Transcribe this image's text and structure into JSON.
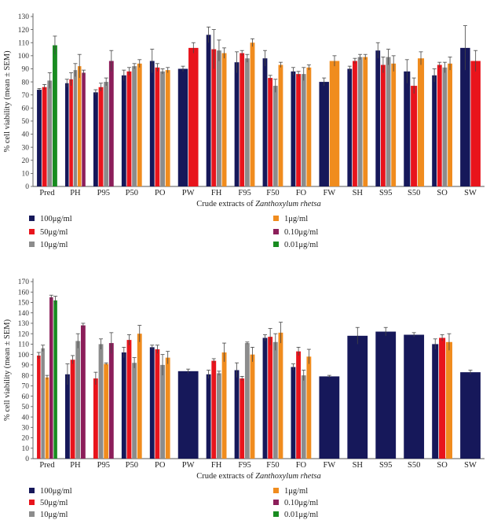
{
  "colors": {
    "100ug": "#16185a",
    "50ug": "#e8141c",
    "10ug": "#8c8c8c",
    "1ug": "#f08c1e",
    "0.10ug": "#8c1e5a",
    "0.01ug": "#188c20"
  },
  "chart_data": [
    {
      "type": "bar",
      "title": "",
      "xlabel_prefix": "Crude extracts of ",
      "xlabel_italic": "Zanthoxylum rhetsa",
      "ylabel": "% cell viability (mean ± SEM)",
      "ylim": [
        0,
        130
      ],
      "ytick_step": 10,
      "categories": [
        "Pred",
        "PH",
        "P95",
        "P50",
        "PO",
        "PW",
        "FH",
        "F95",
        "F50",
        "FO",
        "FW",
        "SH",
        "S95",
        "S50",
        "SO",
        "SW"
      ],
      "series": [
        {
          "name": "100μg/ml",
          "color_key": "100ug",
          "values": [
            74,
            79,
            72,
            85,
            96,
            90,
            116,
            95,
            98,
            88,
            80,
            90,
            104,
            88,
            85,
            106
          ],
          "errors": [
            1,
            3,
            2,
            4,
            9,
            2,
            6,
            8,
            6,
            3,
            3,
            2,
            6,
            9,
            5,
            17
          ]
        },
        {
          "name": "50μg/ml",
          "color_key": "50ug",
          "values": [
            76,
            82,
            76,
            88,
            91,
            106,
            105,
            102,
            83,
            86,
            null,
            96,
            93,
            77,
            93,
            96
          ],
          "errors": [
            2,
            5,
            3,
            3,
            3,
            4,
            15,
            2,
            2,
            2,
            null,
            2,
            6,
            6,
            2,
            8
          ]
        },
        {
          "name": "10μg/ml",
          "color_key": "10ug",
          "values": [
            81,
            89,
            80,
            92,
            88,
            null,
            104,
            98,
            77,
            86,
            null,
            99,
            99,
            null,
            91,
            null
          ],
          "errors": [
            6,
            5,
            3,
            2,
            2,
            null,
            8,
            3,
            5,
            5,
            null,
            2,
            6,
            null,
            4,
            null
          ]
        },
        {
          "name": "1μg/ml",
          "color_key": "1ug",
          "values": [
            null,
            92,
            null,
            94,
            89,
            null,
            102,
            110,
            93,
            91,
            96,
            99,
            94,
            98,
            94,
            null
          ],
          "errors": [
            null,
            9,
            null,
            3,
            2,
            null,
            4,
            3,
            2,
            2,
            4,
            2,
            6,
            5,
            5,
            null
          ]
        },
        {
          "name": "0.10μg/ml",
          "color_key": "0.10ug",
          "values": [
            null,
            87,
            96,
            null,
            null,
            null,
            null,
            null,
            null,
            null,
            null,
            null,
            null,
            null,
            null,
            null
          ],
          "errors": [
            null,
            2,
            8,
            null,
            null,
            null,
            null,
            null,
            null,
            null,
            null,
            null,
            null,
            null,
            null,
            null
          ]
        },
        {
          "name": "0.01μg/ml",
          "color_key": "0.01ug",
          "values": [
            108,
            null,
            null,
            null,
            null,
            null,
            null,
            null,
            null,
            null,
            null,
            null,
            null,
            null,
            null,
            null
          ],
          "errors": [
            7,
            null,
            null,
            null,
            null,
            null,
            null,
            null,
            null,
            null,
            null,
            null,
            null,
            null,
            null,
            null
          ]
        }
      ],
      "legend": [
        "100μg/ml",
        "1μg/ml",
        "50μg/ml",
        "0.10μg/ml",
        "10μg/ml",
        "0.01μg/ml"
      ]
    },
    {
      "type": "bar",
      "title": "",
      "xlabel_prefix": "Crude extracts of ",
      "xlabel_italic": "Zanthoxylum rhetsa",
      "ylabel": "% cell viability (mean ± SEM)",
      "ylim": [
        0,
        170
      ],
      "ytick_step": 10,
      "categories": [
        "Pred",
        "PH",
        "P95",
        "P50",
        "PO",
        "PW",
        "FH",
        "F95",
        "F50",
        "FO",
        "FW",
        "SH",
        "S95",
        "S50",
        "SO",
        "SW"
      ],
      "series": [
        {
          "name": "100μg/ml",
          "color_key": "100ug",
          "values": [
            null,
            81,
            null,
            102,
            107,
            84,
            81,
            85,
            116,
            88,
            79,
            118,
            122,
            119,
            110,
            83
          ],
          "errors": [
            null,
            10,
            null,
            5,
            2,
            2,
            4,
            7,
            3,
            3,
            1,
            8,
            4,
            2,
            5,
            2
          ]
        },
        {
          "name": "50μg/ml",
          "color_key": "50ug",
          "values": [
            99,
            95,
            77,
            114,
            105,
            null,
            94,
            77,
            117,
            103,
            null,
            null,
            null,
            null,
            116,
            null
          ],
          "errors": [
            3,
            4,
            6,
            5,
            4,
            null,
            2,
            2,
            8,
            4,
            null,
            null,
            null,
            null,
            3,
            null
          ]
        },
        {
          "name": "10μg/ml",
          "color_key": "10ug",
          "values": [
            106,
            113,
            110,
            92,
            90,
            null,
            82,
            111,
            112,
            80,
            null,
            null,
            null,
            null,
            null,
            null
          ],
          "errors": [
            3,
            7,
            5,
            5,
            10,
            null,
            2,
            1,
            8,
            5,
            null,
            null,
            null,
            null,
            null,
            null
          ]
        },
        {
          "name": "1μg/ml",
          "color_key": "1ug",
          "values": [
            78,
            null,
            91,
            120,
            97,
            null,
            102,
            100,
            121,
            98,
            null,
            null,
            null,
            null,
            112,
            null
          ],
          "errors": [
            2,
            null,
            1,
            8,
            6,
            null,
            9,
            7,
            10,
            7,
            null,
            null,
            null,
            null,
            8,
            null
          ]
        },
        {
          "name": "0.10μg/ml",
          "color_key": "0.10ug",
          "values": [
            155,
            128,
            111,
            null,
            null,
            null,
            null,
            null,
            null,
            null,
            null,
            null,
            null,
            null,
            null,
            null
          ],
          "errors": [
            2,
            2,
            10,
            null,
            null,
            null,
            null,
            null,
            null,
            null,
            null,
            null,
            null,
            null,
            null,
            null
          ]
        },
        {
          "name": "0.01μg/ml",
          "color_key": "0.01ug",
          "values": [
            152,
            null,
            null,
            null,
            null,
            null,
            null,
            null,
            null,
            null,
            null,
            null,
            null,
            null,
            null,
            null
          ],
          "errors": [
            4,
            null,
            null,
            null,
            null,
            null,
            null,
            null,
            null,
            null,
            null,
            null,
            null,
            null,
            null,
            null
          ]
        }
      ],
      "legend": [
        "100μg/ml",
        "1μg/ml",
        "50μg/ml",
        "0.10μg/ml",
        "10μg/ml",
        "0.01μg/ml"
      ]
    }
  ]
}
